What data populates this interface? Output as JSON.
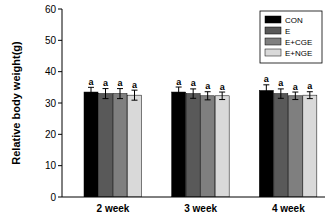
{
  "chart_data": {
    "type": "bar",
    "y_label": "Relative body weight(g)",
    "categories": [
      "2 week",
      "3 week",
      "4 week"
    ],
    "series": [
      {
        "name": "CON",
        "color": "#000000",
        "values": [
          33.5,
          33.5,
          34.0
        ],
        "errors": [
          1.5,
          1.6,
          1.8
        ],
        "letters": [
          "a",
          "a",
          "a"
        ]
      },
      {
        "name": "E",
        "color": "#595959",
        "values": [
          33.0,
          33.0,
          33.0
        ],
        "errors": [
          1.6,
          1.5,
          1.5
        ],
        "letters": [
          "a",
          "a",
          "a"
        ]
      },
      {
        "name": "E+CGE",
        "color": "#7f7f7f",
        "values": [
          33.0,
          32.3,
          32.3
        ],
        "errors": [
          1.6,
          1.3,
          1.2
        ],
        "letters": [
          "a",
          "a",
          "a"
        ]
      },
      {
        "name": "E+NGE",
        "color": "#d9d9d9",
        "values": [
          32.5,
          32.3,
          32.5
        ],
        "errors": [
          1.6,
          1.2,
          1.1
        ],
        "letters": [
          "a",
          "a",
          "a"
        ]
      }
    ],
    "ylim": [
      0,
      60
    ],
    "yticks": [
      0,
      10,
      20,
      30,
      40,
      50,
      60
    ],
    "grid": false,
    "legend": "upper right"
  }
}
